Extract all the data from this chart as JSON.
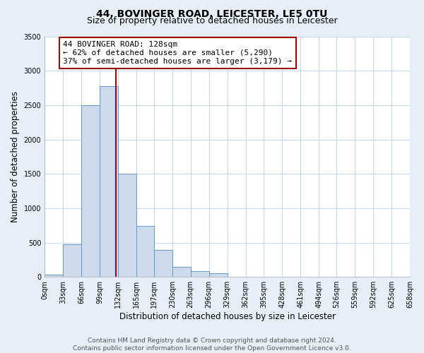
{
  "title": "44, BOVINGER ROAD, LEICESTER, LE5 0TU",
  "subtitle": "Size of property relative to detached houses in Leicester",
  "xlabel": "Distribution of detached houses by size in Leicester",
  "ylabel": "Number of detached properties",
  "bar_edges": [
    0,
    33,
    66,
    99,
    132,
    165,
    197,
    230,
    263,
    296,
    329,
    362,
    395,
    428,
    461,
    494,
    526,
    559,
    592,
    625,
    658
  ],
  "bar_heights": [
    30,
    470,
    2500,
    2780,
    1500,
    740,
    390,
    150,
    80,
    50,
    0,
    0,
    0,
    0,
    0,
    0,
    0,
    0,
    0,
    0
  ],
  "bar_color": "#ccdaeb",
  "bar_edge_color": "#6699cc",
  "property_line_x": 128,
  "property_line_color": "#990000",
  "annotation_line1": "44 BOVINGER ROAD: 128sqm",
  "annotation_line2": "← 62% of detached houses are smaller (5,290)",
  "annotation_line3": "37% of semi-detached houses are larger (3,179) →",
  "annotation_box_color": "#ffffff",
  "annotation_box_edge_color": "#990000",
  "ylim": [
    0,
    3500
  ],
  "yticks": [
    0,
    500,
    1000,
    1500,
    2000,
    2500,
    3000,
    3500
  ],
  "tick_labels": [
    "0sqm",
    "33sqm",
    "66sqm",
    "99sqm",
    "132sqm",
    "165sqm",
    "197sqm",
    "230sqm",
    "263sqm",
    "296sqm",
    "329sqm",
    "362sqm",
    "395sqm",
    "428sqm",
    "461sqm",
    "494sqm",
    "526sqm",
    "559sqm",
    "592sqm",
    "625sqm",
    "658sqm"
  ],
  "footer_text": "Contains HM Land Registry data © Crown copyright and database right 2024.\nContains public sector information licensed under the Open Government Licence v3.0.",
  "background_color": "#e8eef5",
  "plot_background_color": "#ffffff",
  "grid_color": "#c8d8e8",
  "title_fontsize": 10,
  "subtitle_fontsize": 9,
  "axis_label_fontsize": 8.5,
  "tick_fontsize": 7,
  "annotation_fontsize": 8,
  "footer_fontsize": 6.5
}
